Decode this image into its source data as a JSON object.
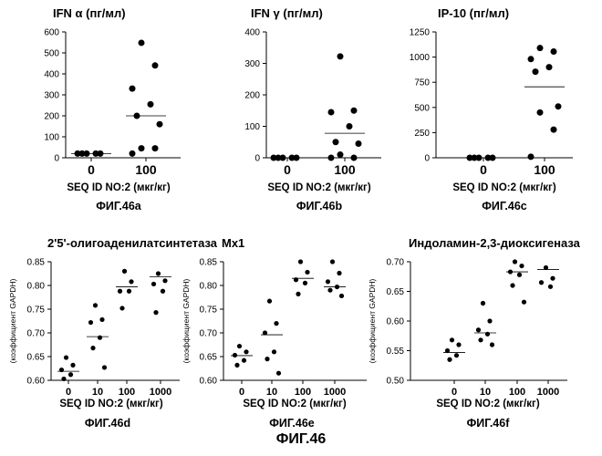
{
  "figure_caption": "ФИГ.46",
  "chart_data": [
    {
      "type": "scatter",
      "title": "IFN α  (пг/мл)",
      "xlabel": "SEQ ID NO:2 (мкг/кг)",
      "ylabel": "",
      "caption": "ФИГ.46a",
      "categories": [
        "0",
        "100"
      ],
      "ylim": [
        0,
        600
      ],
      "yticks": [
        0,
        100,
        200,
        300,
        400,
        500,
        600
      ],
      "ytick_labels": [
        "0",
        "100",
        "200",
        "300",
        "400",
        "500",
        "600"
      ],
      "points": [
        [
          20,
          20,
          20,
          20,
          20
        ],
        [
          548,
          440,
          330,
          255,
          200,
          160,
          45,
          45,
          20
        ]
      ],
      "medians": [
        20,
        200
      ]
    },
    {
      "type": "scatter",
      "title": "IFN γ  (пг/мл)",
      "xlabel": "SEQ ID NO:2 (мкг/кг)",
      "ylabel": "",
      "caption": "ФИГ.46b",
      "categories": [
        "0",
        "100"
      ],
      "ylim": [
        0,
        400
      ],
      "yticks": [
        0,
        100,
        200,
        300,
        400
      ],
      "ytick_labels": [
        "0",
        "100",
        "200",
        "300",
        "400"
      ],
      "points": [
        [
          0,
          0,
          0,
          0,
          0
        ],
        [
          322,
          150,
          145,
          100,
          50,
          45,
          10,
          0,
          0
        ]
      ],
      "medians": [
        0,
        78
      ]
    },
    {
      "type": "scatter",
      "title": "IP-10   (пг/мл)",
      "xlabel": "SEQ ID NO:2 (мкг/кг)",
      "ylabel": "",
      "caption": "ФИГ.46c",
      "categories": [
        "0",
        "100"
      ],
      "ylim": [
        0,
        1250
      ],
      "yticks": [
        0,
        250,
        500,
        750,
        1000,
        1250
      ],
      "ytick_labels": [
        "0",
        "250",
        "500",
        "750",
        "1000",
        "1250"
      ],
      "points": [
        [
          0,
          0,
          0,
          0,
          0
        ],
        [
          1090,
          1055,
          980,
          900,
          855,
          510,
          450,
          280,
          10
        ]
      ],
      "medians": [
        0,
        705
      ]
    },
    {
      "type": "scatter",
      "title": "2'5'-олигоаденилатсинтетаза",
      "xlabel": "SEQ ID NO:2 (мкг/кг)",
      "ylabel": "(коэффициент GAPDH)",
      "caption": "ФИГ.46d",
      "categories": [
        "0",
        "10",
        "100",
        "1000"
      ],
      "ylim": [
        0.6,
        0.85
      ],
      "yticks": [
        0.6,
        0.65,
        0.7,
        0.75,
        0.8,
        0.85
      ],
      "ytick_labels": [
        "0.60",
        "0.65",
        "0.70",
        "0.75",
        "0.80",
        "0.85"
      ],
      "points": [
        [
          0.648,
          0.632,
          0.622,
          0.612,
          0.603
        ],
        [
          0.758,
          0.728,
          0.722,
          0.69,
          0.668,
          0.627
        ],
        [
          0.83,
          0.808,
          0.788,
          0.788,
          0.752
        ],
        [
          0.825,
          0.81,
          0.803,
          0.788,
          0.743
        ]
      ],
      "medians": [
        0.619,
        0.692,
        0.797,
        0.818
      ]
    },
    {
      "type": "scatter",
      "title": "Mx1",
      "xlabel": "SEQ ID NO:2 (мкг/кг)",
      "ylabel": "(коэффициент GAPDH)",
      "caption": "ФИГ.46e",
      "categories": [
        "0",
        "10",
        "100",
        "1000"
      ],
      "ylim": [
        0.6,
        0.85
      ],
      "yticks": [
        0.6,
        0.65,
        0.7,
        0.75,
        0.8,
        0.85
      ],
      "ytick_labels": [
        "0.60",
        "0.65",
        "0.70",
        "0.75",
        "0.80",
        "0.85"
      ],
      "points": [
        [
          0.672,
          0.66,
          0.653,
          0.642,
          0.632
        ],
        [
          0.767,
          0.72,
          0.7,
          0.66,
          0.645,
          0.615
        ],
        [
          0.85,
          0.828,
          0.812,
          0.805,
          0.782
        ],
        [
          0.85,
          0.826,
          0.808,
          0.797,
          0.79,
          0.778
        ]
      ],
      "medians": [
        0.652,
        0.696,
        0.815,
        0.797
      ]
    },
    {
      "type": "scatter",
      "title": "Индоламин-2,3-диоксигеназа",
      "xlabel": "SEQ ID NO:2 (мкг/кг)",
      "ylabel": "(коэффициент GAPDH)",
      "caption": "ФИГ.46f",
      "categories": [
        "0",
        "10",
        "100",
        "1000"
      ],
      "ylim": [
        0.5,
        0.7
      ],
      "yticks": [
        0.5,
        0.55,
        0.6,
        0.65,
        0.7
      ],
      "ytick_labels": [
        "0.50",
        "0.55",
        "0.60",
        "0.65",
        "0.70"
      ],
      "points": [
        [
          0.568,
          0.56,
          0.55,
          0.542,
          0.535
        ],
        [
          0.63,
          0.6,
          0.585,
          0.578,
          0.568,
          0.56
        ],
        [
          0.7,
          0.693,
          0.683,
          0.678,
          0.66,
          0.632
        ],
        [
          0.69,
          0.672,
          0.665,
          0.658
        ]
      ],
      "medians": [
        0.547,
        0.58,
        0.683,
        0.687
      ]
    }
  ]
}
